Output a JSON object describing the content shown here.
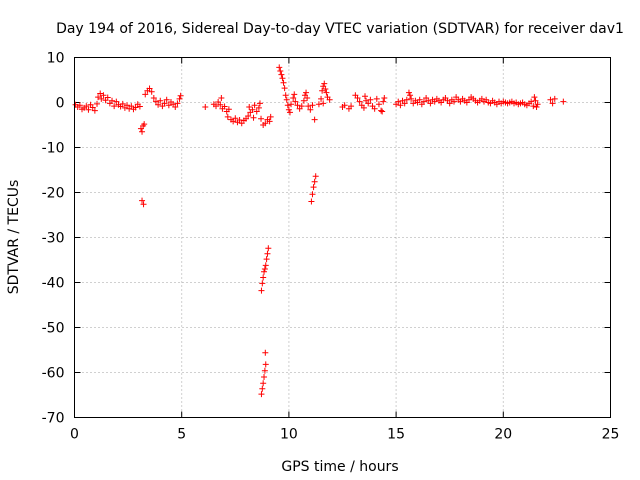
{
  "chart_data": {
    "type": "scatter",
    "title": "Day 194 of 2016, Sidereal Day-to-day VTEC variation (SDTVAR) for receiver dav1",
    "xlabel": "GPS time / hours",
    "ylabel": "SDTVAR / TECUs",
    "xlim": [
      0,
      25
    ],
    "ylim": [
      -70,
      10
    ],
    "xticks": [
      0,
      5,
      10,
      15,
      20,
      25
    ],
    "yticks": [
      10,
      0,
      -10,
      -20,
      -30,
      -40,
      -50,
      -60,
      -70
    ],
    "grid": true,
    "marker": "+",
    "color": "#ff0000",
    "series": [
      {
        "name": "SDTVAR",
        "points": [
          [
            0.05,
            -0.5
          ],
          [
            0.15,
            -1.0
          ],
          [
            0.25,
            -0.6
          ],
          [
            0.35,
            -1.5
          ],
          [
            0.45,
            -1.2
          ],
          [
            0.55,
            -0.8
          ],
          [
            0.65,
            -1.6
          ],
          [
            0.75,
            -0.5
          ],
          [
            0.85,
            -1.1
          ],
          [
            0.95,
            -1.8
          ],
          [
            1.05,
            -0.3
          ],
          [
            1.1,
            1.2
          ],
          [
            1.2,
            2.0
          ],
          [
            1.25,
            0.8
          ],
          [
            1.35,
            1.6
          ],
          [
            1.45,
            0.5
          ],
          [
            1.55,
            1.1
          ],
          [
            1.65,
            -0.2
          ],
          [
            1.75,
            0.4
          ],
          [
            1.85,
            -0.8
          ],
          [
            1.95,
            0.2
          ],
          [
            2.05,
            -0.5
          ],
          [
            2.15,
            -0.9
          ],
          [
            2.25,
            -0.3
          ],
          [
            2.35,
            -1.2
          ],
          [
            2.45,
            -0.6
          ],
          [
            2.55,
            -1.4
          ],
          [
            2.65,
            -0.8
          ],
          [
            2.75,
            -1.5
          ],
          [
            2.85,
            -1.1
          ],
          [
            2.95,
            -0.4
          ],
          [
            3.05,
            -0.9
          ],
          [
            3.1,
            -5.8
          ],
          [
            3.15,
            -6.5
          ],
          [
            3.2,
            -5.2
          ],
          [
            3.25,
            -4.8
          ],
          [
            3.15,
            -21.8
          ],
          [
            3.22,
            -22.6
          ],
          [
            3.3,
            1.8
          ],
          [
            3.4,
            2.6
          ],
          [
            3.5,
            3.1
          ],
          [
            3.6,
            2.4
          ],
          [
            3.7,
            1.0
          ],
          [
            3.8,
            0.2
          ],
          [
            3.9,
            -0.5
          ],
          [
            4.0,
            0.4
          ],
          [
            4.1,
            -0.8
          ],
          [
            4.2,
            -0.2
          ],
          [
            4.3,
            0.6
          ],
          [
            4.4,
            -0.6
          ],
          [
            4.5,
            0.1
          ],
          [
            4.6,
            -0.4
          ],
          [
            4.7,
            -1.0
          ],
          [
            4.8,
            -0.2
          ],
          [
            4.9,
            0.8
          ],
          [
            4.95,
            1.5
          ],
          [
            6.1,
            -1.0
          ],
          [
            6.5,
            -0.4
          ],
          [
            6.6,
            -0.8
          ],
          [
            6.7,
            0.1
          ],
          [
            6.8,
            -0.5
          ],
          [
            6.85,
            1.0
          ],
          [
            6.9,
            -1.4
          ],
          [
            7.0,
            -0.9
          ],
          [
            7.1,
            -2.0
          ],
          [
            7.15,
            -3.2
          ],
          [
            7.2,
            -1.5
          ],
          [
            7.3,
            -3.8
          ],
          [
            7.4,
            -4.2
          ],
          [
            7.5,
            -3.5
          ],
          [
            7.6,
            -4.4
          ],
          [
            7.7,
            -3.9
          ],
          [
            7.8,
            -4.6
          ],
          [
            7.9,
            -4.0
          ],
          [
            8.0,
            -3.6
          ],
          [
            8.1,
            -3.0
          ],
          [
            8.15,
            -1.0
          ],
          [
            8.2,
            -2.2
          ],
          [
            8.3,
            -1.6
          ],
          [
            8.35,
            -3.4
          ],
          [
            8.4,
            -0.6
          ],
          [
            8.5,
            -2.0
          ],
          [
            8.6,
            -1.2
          ],
          [
            8.65,
            -0.2
          ],
          [
            8.7,
            -3.6
          ],
          [
            8.8,
            -5.0
          ],
          [
            8.9,
            -4.6
          ],
          [
            9.0,
            -3.8
          ],
          [
            9.1,
            -4.2
          ],
          [
            9.15,
            -3.2
          ],
          [
            8.72,
            -41.8
          ],
          [
            8.76,
            -40.2
          ],
          [
            8.8,
            -38.9
          ],
          [
            8.84,
            -37.6
          ],
          [
            8.88,
            -37.0
          ],
          [
            8.92,
            -36.2
          ],
          [
            8.96,
            -34.8
          ],
          [
            9.0,
            -33.6
          ],
          [
            9.04,
            -32.4
          ],
          [
            8.72,
            -64.8
          ],
          [
            8.76,
            -63.6
          ],
          [
            8.8,
            -62.4
          ],
          [
            8.84,
            -61.0
          ],
          [
            8.88,
            -59.6
          ],
          [
            8.92,
            -58.2
          ],
          [
            8.9,
            -55.6
          ],
          [
            9.55,
            7.8
          ],
          [
            9.6,
            7.0
          ],
          [
            9.65,
            6.2
          ],
          [
            9.7,
            5.4
          ],
          [
            9.75,
            4.4
          ],
          [
            9.8,
            3.2
          ],
          [
            9.85,
            1.6
          ],
          [
            9.9,
            0.6
          ],
          [
            9.95,
            -0.6
          ],
          [
            10.0,
            -1.6
          ],
          [
            10.05,
            -2.2
          ],
          [
            10.1,
            -0.4
          ],
          [
            10.2,
            1.0
          ],
          [
            10.25,
            1.8
          ],
          [
            10.3,
            0.2
          ],
          [
            10.4,
            -0.6
          ],
          [
            10.5,
            -1.4
          ],
          [
            10.6,
            -0.8
          ],
          [
            10.7,
            0.4
          ],
          [
            10.75,
            1.6
          ],
          [
            10.8,
            2.2
          ],
          [
            10.85,
            1.0
          ],
          [
            10.9,
            -0.8
          ],
          [
            11.0,
            -1.6
          ],
          [
            11.1,
            -0.6
          ],
          [
            11.2,
            -3.8
          ],
          [
            11.05,
            -22.0
          ],
          [
            11.1,
            -20.4
          ],
          [
            11.15,
            -18.8
          ],
          [
            11.2,
            -17.6
          ],
          [
            11.25,
            -16.4
          ],
          [
            11.4,
            -0.4
          ],
          [
            11.5,
            0.8
          ],
          [
            11.55,
            2.6
          ],
          [
            11.6,
            3.6
          ],
          [
            11.65,
            4.2
          ],
          [
            11.7,
            3.0
          ],
          [
            11.75,
            2.2
          ],
          [
            11.8,
            1.2
          ],
          [
            11.9,
            0.6
          ],
          [
            11.6,
            -0.2
          ],
          [
            12.5,
            -1.0
          ],
          [
            12.6,
            -0.6
          ],
          [
            12.8,
            -1.4
          ],
          [
            12.9,
            -0.8
          ],
          [
            13.1,
            1.6
          ],
          [
            13.2,
            1.0
          ],
          [
            13.3,
            0.2
          ],
          [
            13.4,
            -0.6
          ],
          [
            13.5,
            -1.2
          ],
          [
            13.55,
            1.4
          ],
          [
            13.6,
            0.4
          ],
          [
            13.7,
            -0.2
          ],
          [
            13.8,
            0.6
          ],
          [
            13.9,
            -0.8
          ],
          [
            14.0,
            -1.4
          ],
          [
            14.1,
            0.8
          ],
          [
            14.2,
            -0.4
          ],
          [
            14.3,
            -1.8
          ],
          [
            14.35,
            -2.0
          ],
          [
            14.4,
            0.2
          ],
          [
            14.45,
            1.0
          ],
          [
            15.0,
            -0.4
          ],
          [
            15.1,
            0.2
          ],
          [
            15.2,
            -0.6
          ],
          [
            15.3,
            0.4
          ],
          [
            15.4,
            -0.2
          ],
          [
            15.5,
            0.6
          ],
          [
            15.6,
            2.2
          ],
          [
            15.65,
            1.6
          ],
          [
            15.7,
            0.8
          ],
          [
            15.8,
            -0.2
          ],
          [
            15.9,
            0.4
          ],
          [
            16.0,
            0.0
          ],
          [
            16.1,
            0.6
          ],
          [
            16.2,
            -0.4
          ],
          [
            16.3,
            0.2
          ],
          [
            16.4,
            1.0
          ],
          [
            16.5,
            0.4
          ],
          [
            16.6,
            -0.2
          ],
          [
            16.7,
            0.6
          ],
          [
            16.8,
            0.2
          ],
          [
            16.9,
            0.8
          ],
          [
            17.0,
            0.4
          ],
          [
            17.1,
            0.0
          ],
          [
            17.2,
            0.6
          ],
          [
            17.3,
            1.0
          ],
          [
            17.4,
            0.4
          ],
          [
            17.5,
            -0.2
          ],
          [
            17.6,
            0.6
          ],
          [
            17.7,
            0.2
          ],
          [
            17.8,
            1.2
          ],
          [
            17.9,
            0.6
          ],
          [
            18.0,
            0.2
          ],
          [
            18.1,
            0.8
          ],
          [
            18.2,
            0.4
          ],
          [
            18.3,
            0.0
          ],
          [
            18.4,
            0.6
          ],
          [
            18.5,
            1.2
          ],
          [
            18.6,
            0.8
          ],
          [
            18.7,
            0.4
          ],
          [
            18.8,
            0.0
          ],
          [
            18.9,
            0.4
          ],
          [
            19.0,
            0.8
          ],
          [
            19.1,
            0.2
          ],
          [
            19.2,
            0.6
          ],
          [
            19.3,
            0.0
          ],
          [
            19.4,
            -0.2
          ],
          [
            19.5,
            0.4
          ],
          [
            19.6,
            0.0
          ],
          [
            19.7,
            -0.4
          ],
          [
            19.8,
            0.2
          ],
          [
            19.9,
            -0.2
          ],
          [
            20.0,
            0.2
          ],
          [
            20.1,
            0.0
          ],
          [
            20.2,
            -0.2
          ],
          [
            20.3,
            0.0
          ],
          [
            20.4,
            0.2
          ],
          [
            20.5,
            -0.2
          ],
          [
            20.6,
            0.0
          ],
          [
            20.7,
            -0.4
          ],
          [
            20.8,
            -0.2
          ],
          [
            20.9,
            0.0
          ],
          [
            21.0,
            -0.4
          ],
          [
            21.1,
            -0.6
          ],
          [
            21.2,
            -0.2
          ],
          [
            21.3,
            0.2
          ],
          [
            21.4,
            -0.8
          ],
          [
            21.45,
            1.2
          ],
          [
            21.5,
            0.4
          ],
          [
            21.55,
            -1.0
          ],
          [
            21.6,
            -0.4
          ],
          [
            22.2,
            0.6
          ],
          [
            22.3,
            -0.2
          ],
          [
            22.4,
            0.8
          ],
          [
            22.8,
            0.2
          ]
        ]
      }
    ]
  }
}
